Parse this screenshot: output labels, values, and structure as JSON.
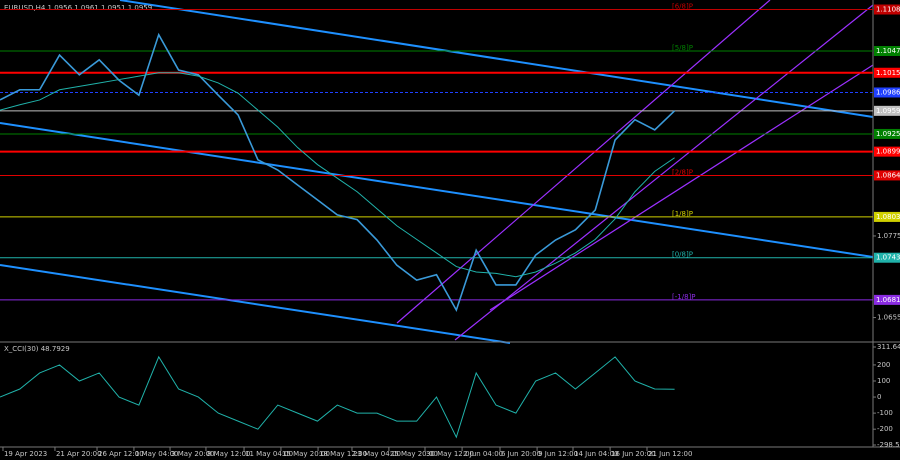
{
  "chart_data": [
    {
      "type": "line",
      "title": "EURUSD,H4  1.0956 1.0961 1.0951 1.0959",
      "x": [
        0,
        1,
        2,
        3,
        4,
        5,
        6,
        7,
        8,
        9,
        10,
        11,
        12,
        13,
        14,
        15,
        16,
        17,
        18,
        19,
        20,
        21,
        22,
        23,
        24,
        25,
        26,
        27,
        28,
        29,
        30,
        31,
        32,
        33,
        34
      ],
      "xlim": [
        0,
        44
      ],
      "xticks": [
        {
          "value": 0.15,
          "label": "19 Apr 2023"
        },
        {
          "value": 2.77,
          "label": "21 Apr 20:00"
        },
        {
          "value": 4.89,
          "label": "26 Apr 12:00"
        },
        {
          "value": 6.75,
          "label": "1 May 04:00"
        },
        {
          "value": 8.57,
          "label": "3 May 20:00"
        },
        {
          "value": 10.38,
          "label": "8 May 12:00"
        },
        {
          "value": 12.3,
          "label": "11 May 04:00"
        },
        {
          "value": 14.16,
          "label": "15 May 20:00"
        },
        {
          "value": 16.03,
          "label": "18 May 12:00"
        },
        {
          "value": 17.74,
          "label": "23 May 04:00"
        },
        {
          "value": 19.6,
          "label": "25 May 20:00"
        },
        {
          "value": 21.42,
          "label": "30 May 12:00"
        },
        {
          "value": 23.29,
          "label": "2 Jun 04:00"
        },
        {
          "value": 25.2,
          "label": "6 Jun 20:00"
        },
        {
          "value": 27.07,
          "label": "9 Jun 12:00"
        },
        {
          "value": 28.88,
          "label": "14 Jun 04:00"
        },
        {
          "value": 30.75,
          "label": "16 Jun 20:00"
        },
        {
          "value": 32.61,
          "label": "21 Jun 12:00"
        }
      ],
      "ylim": [
        1.0622,
        1.1122
      ],
      "yticks": [
        1.0655,
        1.0775
      ],
      "series": [
        {
          "color": "#3a9ad9",
          "values": [
            1.0975,
            1.099,
            1.099,
            1.1041,
            1.1012,
            1.1034,
            1.1004,
            1.0982,
            1.1071,
            1.1019,
            1.1012,
            1.0982,
            1.0953,
            1.0887,
            1.0872,
            1.085,
            1.0828,
            1.0806,
            1.0799,
            1.0769,
            1.0732,
            1.071,
            1.0718,
            1.0666,
            1.0754,
            1.0703,
            1.0703,
            1.0747,
            1.0769,
            1.0784,
            1.0813,
            1.0916,
            1.0946,
            1.0931,
            1.0959
          ]
        },
        {
          "color": "#20b2aa",
          "values": [
            1.096,
            1.0968,
            1.0975,
            1.099,
            1.0995,
            1.1,
            1.1005,
            1.101,
            1.1015,
            1.1015,
            1.101,
            1.1,
            1.0985,
            1.096,
            1.0935,
            1.0905,
            1.088,
            1.086,
            1.084,
            1.0815,
            1.079,
            1.077,
            1.075,
            1.073,
            1.0722,
            1.072,
            1.0715,
            1.0722,
            1.0735,
            1.075,
            1.077,
            1.08,
            1.084,
            1.087,
            1.089
          ]
        }
      ],
      "levels": [
        {
          "label": "[6/8]P",
          "value": 1.1108,
          "color": "#c00000"
        },
        {
          "label": "[5/8]P",
          "value": 1.1047,
          "color": "#008000"
        },
        {
          "value": 1.1015,
          "color": "#ff0000"
        },
        {
          "value": 1.0986,
          "color": "#2040ff"
        },
        {
          "value": 1.0959,
          "color": "#c0c0c0"
        },
        {
          "value": 1.0925,
          "color": "#008000"
        },
        {
          "value": 1.0899,
          "color": "#ff0000"
        },
        {
          "label": "[2/8]P",
          "value": 1.0864,
          "color": "#e00000"
        },
        {
          "label": "[1/8]P",
          "value": 1.0803,
          "color": "#d0d000"
        },
        {
          "label": "[0/8]P",
          "value": 1.0743,
          "color": "#20b2aa"
        },
        {
          "label": "[-1/8]P",
          "value": 1.0681,
          "color": "#8a2be2"
        }
      ]
    },
    {
      "type": "line",
      "title": "X_CCI(30) 48.7929",
      "ylim": [
        -298.516,
        311.6444
      ],
      "yticks": [
        311.6444,
        200,
        100,
        0,
        -100,
        -200,
        -298.516
      ],
      "series": [
        {
          "color": "#20b2aa",
          "values": [
            0,
            50,
            150,
            200,
            100,
            150,
            0,
            -50,
            250,
            50,
            0,
            -100,
            -150,
            -200,
            -50,
            -100,
            -150,
            -50,
            -100,
            -100,
            -150,
            -150,
            0,
            -250,
            150,
            -50,
            -100,
            100,
            150,
            50,
            150,
            250,
            100,
            50,
            48.7929
          ]
        }
      ]
    }
  ]
}
